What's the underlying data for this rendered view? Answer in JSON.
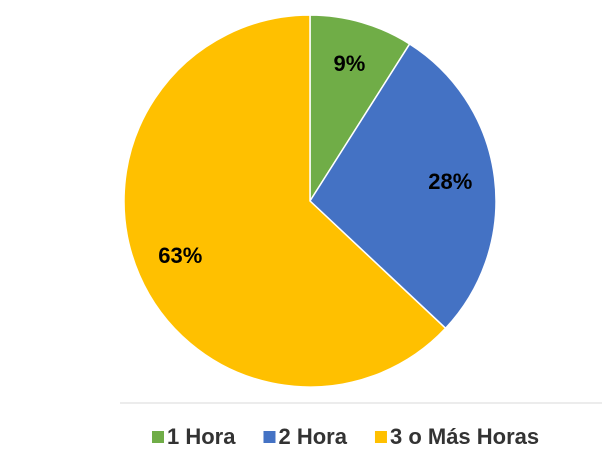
{
  "chart_data": {
    "type": "pie",
    "categories": [
      "1 Hora",
      "2 Hora",
      "3 o Más Horas"
    ],
    "values": [
      9,
      28,
      63
    ],
    "value_labels": [
      "9%",
      "28%",
      "63%"
    ],
    "colors": [
      "#70ad47",
      "#4472c4",
      "#ffc000"
    ],
    "legend": "bottom"
  }
}
